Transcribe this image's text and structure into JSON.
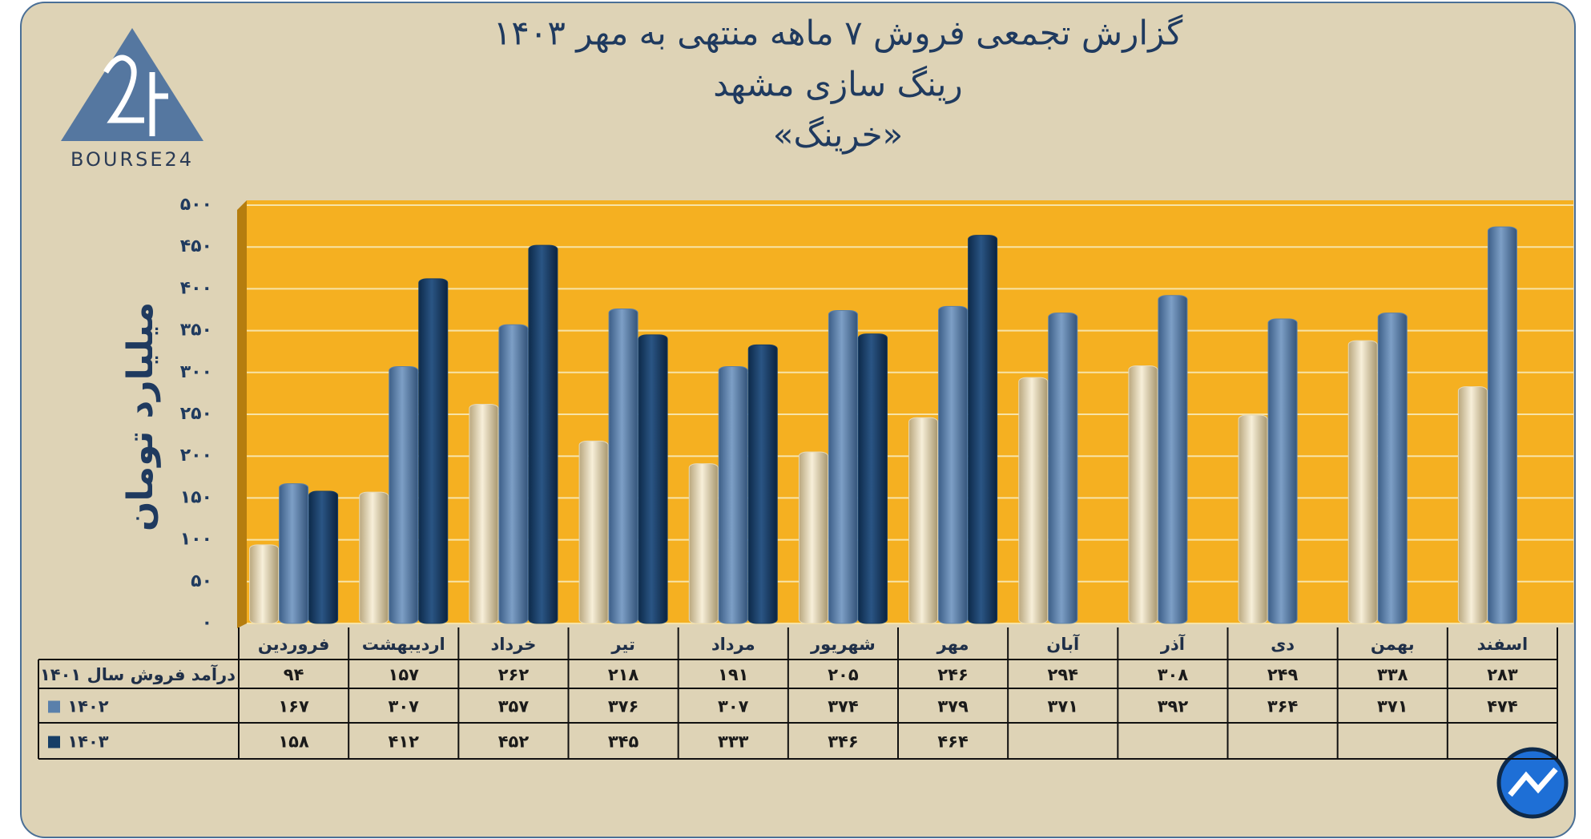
{
  "chart_data": {
    "type": "bar",
    "logo": "BOURSE24",
    "title": "گزارش تجمعی فروش ۷ ماهه منتهی به مهر ۱۴۰۳",
    "subtitle": "رینگ سازی مشهد",
    "subtitle2": "«خرینگ»",
    "y_label": "میلیارد تومان",
    "categories": [
      "فروردین",
      "اردیبهشت",
      "خرداد",
      "تیر",
      "مرداد",
      "شهریور",
      "مهر",
      "آبان",
      "آذر",
      "دی",
      "بهمن",
      "اسفند"
    ],
    "series": [
      {
        "name": "درآمد فروش سال ۱۴۰۱",
        "color": "#e6d9b8",
        "values": [
          94,
          157,
          262,
          218,
          191,
          205,
          246,
          294,
          308,
          249,
          338,
          283
        ],
        "value_labels": [
          "۹۴",
          "۱۵۷",
          "۲۶۲",
          "۲۱۸",
          "۱۹۱",
          "۲۰۵",
          "۲۴۶",
          "۲۹۴",
          "۳۰۸",
          "۲۴۹",
          "۳۳۸",
          "۲۸۳"
        ]
      },
      {
        "name": "۱۴۰۲",
        "color": "#5a80ab",
        "values": [
          167,
          307,
          357,
          376,
          307,
          374,
          379,
          371,
          392,
          364,
          371,
          474
        ],
        "value_labels": [
          "۱۶۷",
          "۳۰۷",
          "۳۵۷",
          "۳۷۶",
          "۳۰۷",
          "۳۷۴",
          "۳۷۹",
          "۳۷۱",
          "۳۹۲",
          "۳۶۴",
          "۳۷۱",
          "۴۷۴"
        ]
      },
      {
        "name": "۱۴۰۳",
        "color": "#173e66",
        "values": [
          158,
          412,
          452,
          345,
          333,
          346,
          464,
          null,
          null,
          null,
          null,
          null
        ],
        "value_labels": [
          "۱۵۸",
          "۴۱۲",
          "۴۵۲",
          "۳۴۵",
          "۳۳۳",
          "۳۴۶",
          "۴۶۴",
          null,
          null,
          null,
          null,
          null
        ]
      }
    ],
    "ylim": [
      0,
      500
    ],
    "yticks": [
      {
        "value": 0,
        "label": "۰"
      },
      {
        "value": 50,
        "label": "۵۰"
      },
      {
        "value": 100,
        "label": "۱۰۰"
      },
      {
        "value": 150,
        "label": "۱۵۰"
      },
      {
        "value": 200,
        "label": "۲۰۰"
      },
      {
        "value": 250,
        "label": "۲۵۰"
      },
      {
        "value": 300,
        "label": "۳۰۰"
      },
      {
        "value": 350,
        "label": "۳۵۰"
      },
      {
        "value": 400,
        "label": "۴۰۰"
      },
      {
        "value": 450,
        "label": "۴۵۰"
      },
      {
        "value": 500,
        "label": "۵۰۰"
      }
    ],
    "grid": true
  }
}
